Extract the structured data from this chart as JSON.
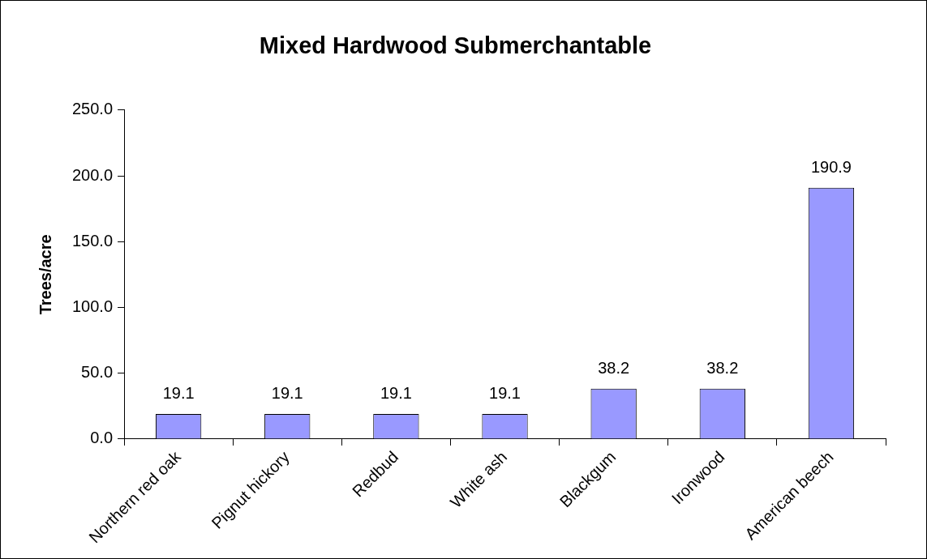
{
  "chart_data": {
    "type": "bar",
    "title": "Mixed Hardwood Submerchantable",
    "ylabel": "Trees/acre",
    "categories": [
      "Northern red oak",
      "Pignut hickory",
      "Redbud",
      "White ash",
      "Blackgum",
      "Ironwood",
      "American beech"
    ],
    "values": [
      19.1,
      19.1,
      19.1,
      19.1,
      38.2,
      38.2,
      190.9
    ],
    "color": "#9999ff",
    "ylim": [
      0,
      250
    ],
    "yticks": [
      {
        "value": 0,
        "label": "0.0"
      },
      {
        "value": 50,
        "label": "50.0"
      },
      {
        "value": 100,
        "label": "100.0"
      },
      {
        "value": 150,
        "label": "150.0"
      },
      {
        "value": 200,
        "label": "200.0"
      },
      {
        "value": 250,
        "label": "250.0"
      }
    ],
    "data_labels": true,
    "grid": false,
    "legend": false
  }
}
